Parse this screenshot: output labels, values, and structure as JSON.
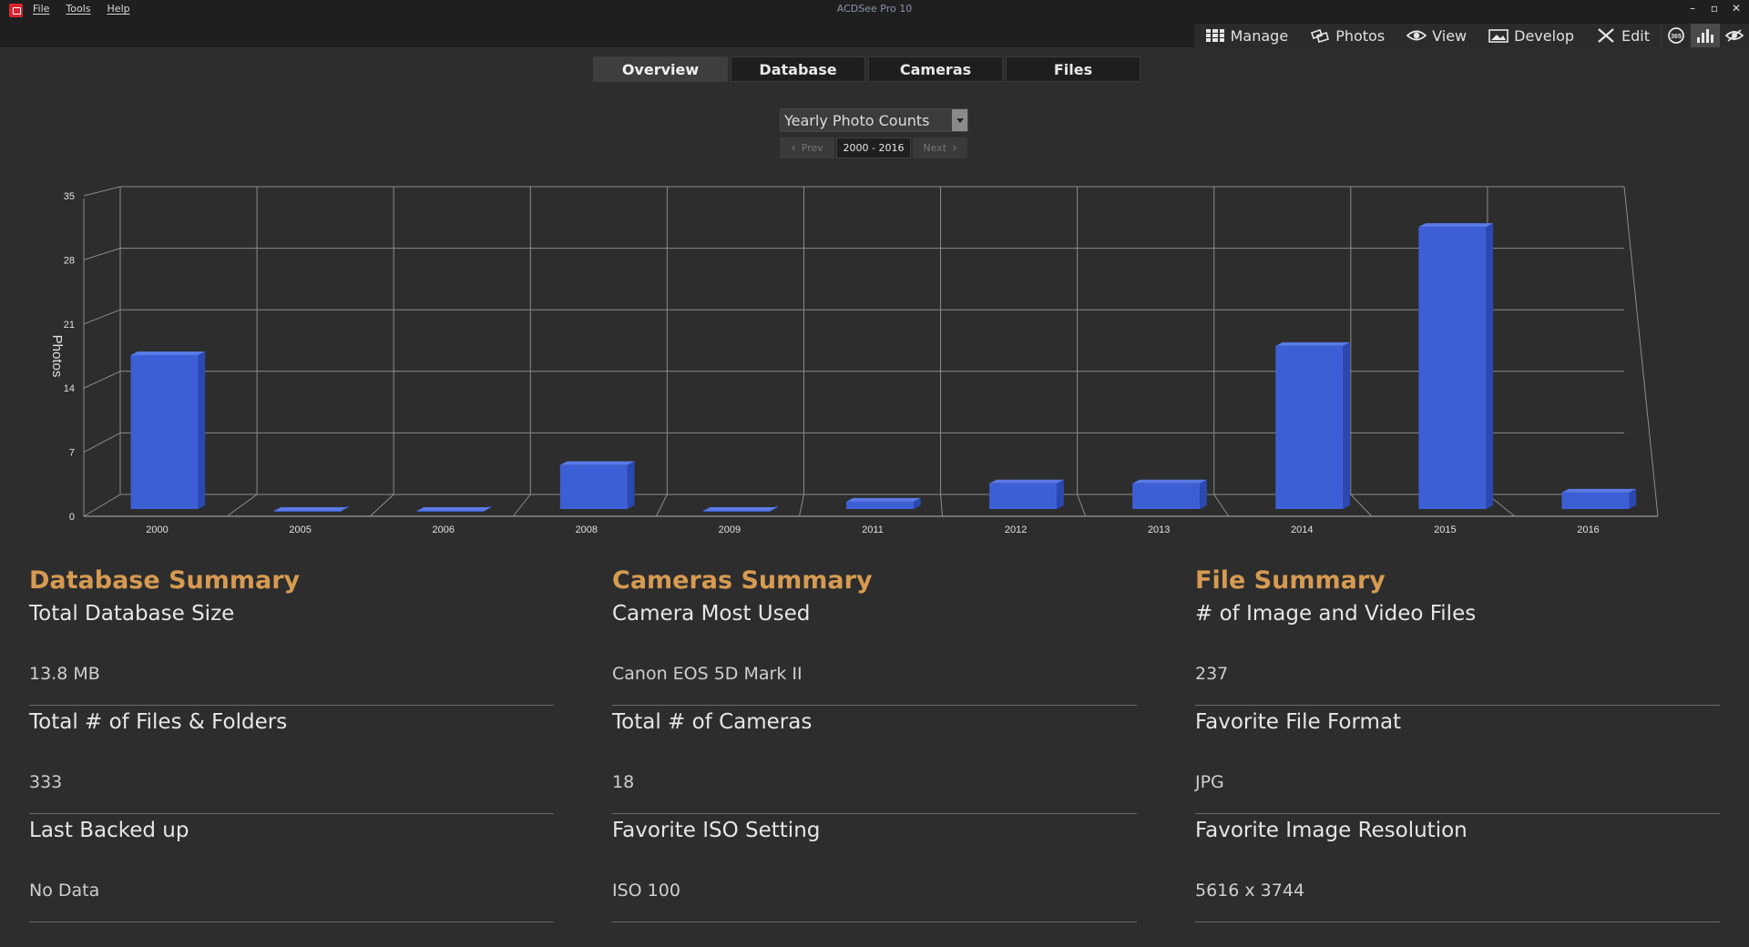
{
  "app": {
    "window_title": "ACDSee Pro 10",
    "menu": [
      "File",
      "Tools",
      "Help"
    ],
    "window_controls": [
      "–",
      "▫",
      "✕"
    ]
  },
  "modes": {
    "manage": "Manage",
    "photos": "Photos",
    "view": "View",
    "develop": "Develop",
    "edit": "Edit",
    "icons": [
      "365-icon",
      "dashboard-icon",
      "online-icon"
    ]
  },
  "tabs": [
    {
      "label": "Overview",
      "active": true
    },
    {
      "label": "Database",
      "active": false
    },
    {
      "label": "Cameras",
      "active": false
    },
    {
      "label": "Files",
      "active": false
    }
  ],
  "chart_selector": {
    "selected": "Yearly Photo Counts",
    "prev_label": "Prev",
    "next_label": "Next",
    "range": "2000 - 2016"
  },
  "chart_data": {
    "type": "bar",
    "style": "3d",
    "ylabel": "Photos",
    "categories": [
      "2000",
      "2005",
      "2006",
      "2008",
      "2009",
      "2011",
      "2012",
      "2013",
      "2014",
      "2015",
      "2016"
    ],
    "values": [
      18,
      1,
      1,
      6,
      1,
      2,
      4,
      4,
      19,
      32,
      3
    ],
    "yticks": [
      0,
      7,
      14,
      21,
      28,
      35
    ],
    "ylim": [
      0,
      35
    ],
    "grid": true,
    "bar_color": "#3d5fd6"
  },
  "summaries": [
    {
      "title": "Database Summary",
      "stats": [
        {
          "label": "Total Database Size",
          "value": "13.8 MB"
        },
        {
          "label": "Total # of Files & Folders",
          "value": "333"
        },
        {
          "label": "Last Backed up",
          "value": "No Data"
        }
      ]
    },
    {
      "title": "Cameras Summary",
      "stats": [
        {
          "label": "Camera Most Used",
          "value": "Canon EOS 5D Mark II"
        },
        {
          "label": "Total # of Cameras",
          "value": "18"
        },
        {
          "label": "Favorite ISO Setting",
          "value": "ISO 100"
        }
      ]
    },
    {
      "title": "File Summary",
      "stats": [
        {
          "label": "# of Image and Video Files",
          "value": "237"
        },
        {
          "label": "Favorite File Format",
          "value": "JPG"
        },
        {
          "label": "Favorite Image Resolution",
          "value": "5616 x 3744"
        }
      ]
    }
  ]
}
